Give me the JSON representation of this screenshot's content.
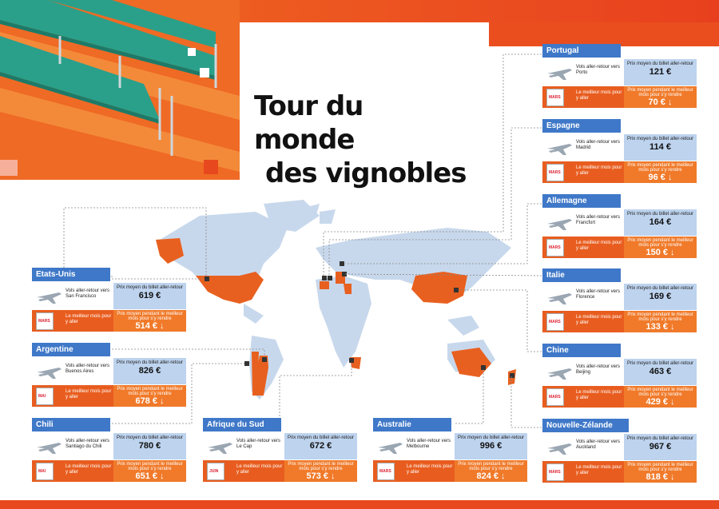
{
  "title": {
    "line1": "Tour du monde",
    "line2": "des vignobles"
  },
  "labels": {
    "route_prefix": "Vols aller-retour vers",
    "price_label": "Prix moyen du billet aller-retour",
    "best_month_label": "Le meilleur mois pour y aller",
    "low_label": "Prix moyen pendant le meilleur mois pour s'y rendre"
  },
  "colors": {
    "orange": "#e85d1f",
    "blue": "#3f78c8",
    "light_blue": "#bdd3ee",
    "map_land": "#c8d8ec",
    "highlight": "#e8601f"
  },
  "cards": [
    {
      "country": "Portugal",
      "city": "Porto",
      "price": "121 €",
      "month": "MARS",
      "low_price": "70 € ↓"
    },
    {
      "country": "Espagne",
      "city": "Madrid",
      "price": "114 €",
      "month": "MARS",
      "low_price": "96 € ↓"
    },
    {
      "country": "Allemagne",
      "city": "Francfort",
      "price": "164 €",
      "month": "MARS",
      "low_price": "150 € ↓"
    },
    {
      "country": "Italie",
      "city": "Florence",
      "price": "169 €",
      "month": "MARS",
      "low_price": "133 € ↓"
    },
    {
      "country": "Chine",
      "city": "Beijing",
      "price": "463 €",
      "month": "MARS",
      "low_price": "429 € ↓"
    },
    {
      "country": "Nouvelle-Zélande",
      "city": "Auckland",
      "price": "967 €",
      "month": "MARS",
      "low_price": "818 € ↓"
    },
    {
      "country": "Etats-Unis",
      "city": "San Francisco",
      "price": "619 €",
      "month": "MARS",
      "low_price": "514 € ↓"
    },
    {
      "country": "Argentine",
      "city": "Buenos Aires",
      "price": "826 €",
      "month": "MAI",
      "low_price": "678 € ↓"
    },
    {
      "country": "Chili",
      "city": "Santiago du Chili",
      "price": "780 €",
      "month": "MAI",
      "low_price": "651 € ↓"
    },
    {
      "country": "Afrique du Sud",
      "city": "Le Cap",
      "price": "672 €",
      "month": "JUIN",
      "low_price": "573 € ↓"
    },
    {
      "country": "Australie",
      "city": "Melbourne",
      "price": "996 €",
      "month": "MARS",
      "low_price": "824 € ↓"
    }
  ]
}
